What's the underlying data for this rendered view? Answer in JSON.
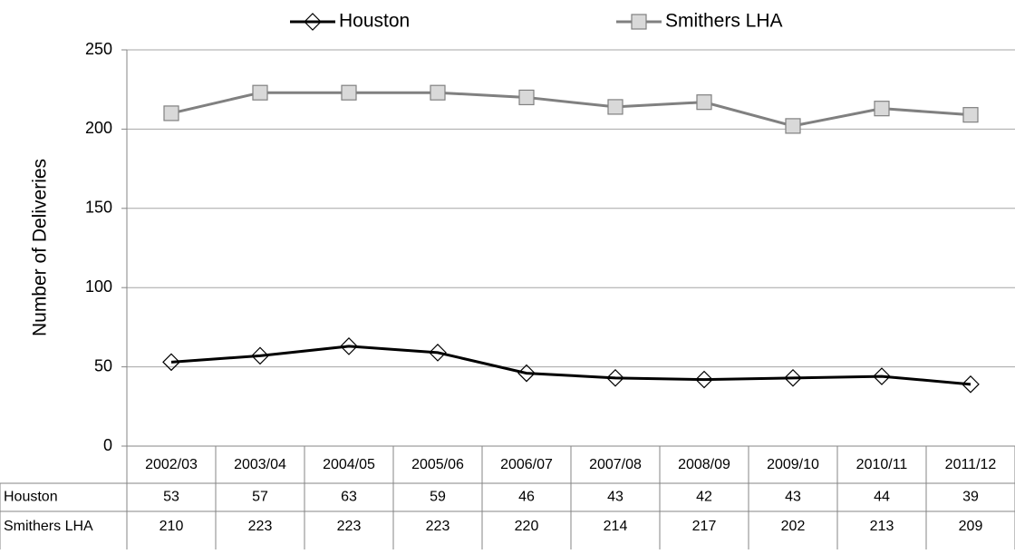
{
  "chart_data": {
    "type": "line",
    "y_label": "Number of Deliveries",
    "categories": [
      "2002/03",
      "2003/04",
      "2004/05",
      "2005/06",
      "2006/07",
      "2007/08",
      "2008/09",
      "2009/10",
      "2010/11",
      "2011/12"
    ],
    "series": [
      {
        "name": "Houston",
        "color": "#000000",
        "marker": "diamond",
        "values": [
          53,
          57,
          63,
          59,
          46,
          43,
          42,
          43,
          44,
          39
        ]
      },
      {
        "name": "Smithers LHA",
        "color": "#808080",
        "marker": "square",
        "values": [
          210,
          223,
          223,
          223,
          220,
          214,
          217,
          202,
          213,
          209
        ]
      }
    ],
    "ylim": [
      0,
      250
    ],
    "yticks": [
      0,
      50,
      100,
      150,
      200,
      250
    ],
    "grid": true,
    "legend": "top",
    "data_table": true
  }
}
